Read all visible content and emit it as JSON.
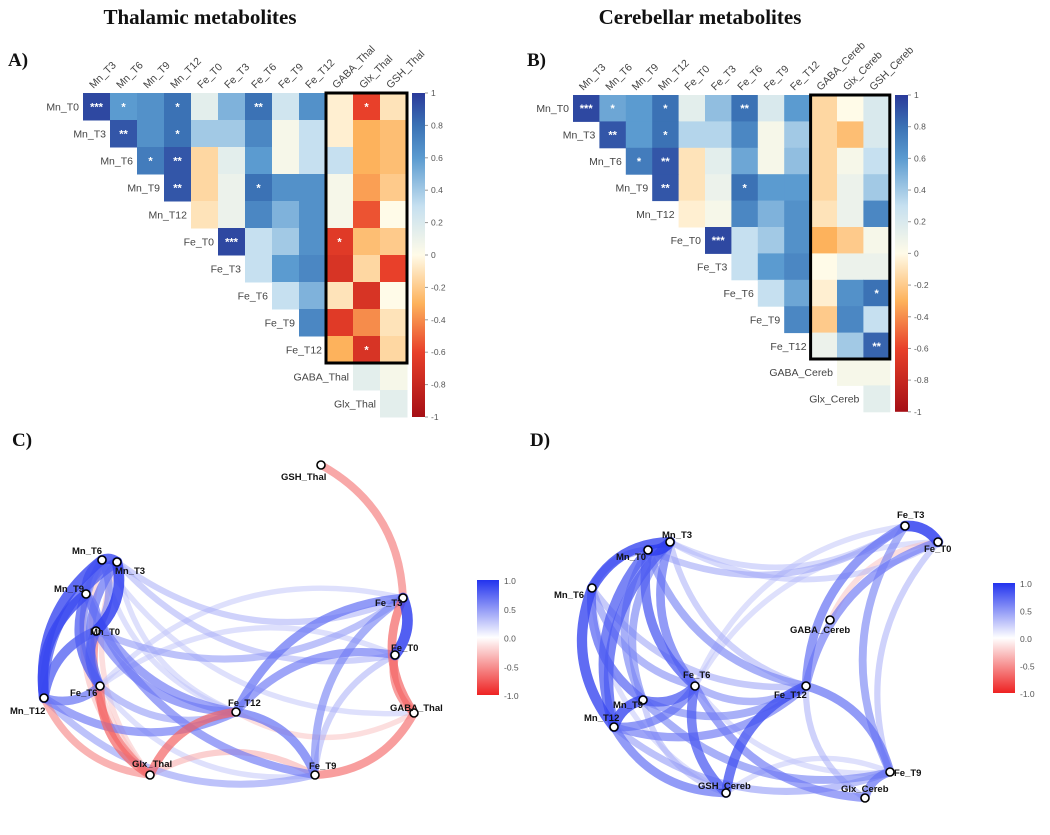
{
  "figure": {
    "titles": [
      "Thalamic metabolites",
      "Cerebellar metabolites"
    ],
    "panel_labels": [
      "A)",
      "B)",
      "C)",
      "D)"
    ]
  },
  "chart_data": [
    {
      "type": "heatmap",
      "panel": "A)",
      "title": "Thalamic metabolites",
      "row_labels": [
        "Mn_T0",
        "Mn_T3",
        "Mn_T6",
        "Mn_T9",
        "Mn_T12",
        "Fe_T0",
        "Fe_T3",
        "Fe_T6",
        "Fe_T9",
        "Fe_T12",
        "GABA_Thal",
        "Glx_Thal"
      ],
      "col_labels": [
        "Mn_T3",
        "Mn_T6",
        "Mn_T9",
        "Mn_T12",
        "Fe_T0",
        "Fe_T3",
        "Fe_T6",
        "Fe_T9",
        "Fe_T12",
        "GABA_Thal",
        "Glx_Thal",
        "GSH_Thal"
      ],
      "layout": "upper-triangle",
      "values": [
        [
          0.95,
          0.6,
          0.65,
          0.8,
          0.15,
          0.5,
          0.8,
          0.25,
          0.65,
          -0.05,
          -0.6,
          -0.1
        ],
        [
          0.9,
          0.65,
          0.8,
          0.4,
          0.4,
          0.7,
          0.05,
          0.3,
          -0.05,
          -0.3,
          -0.25
        ],
        [
          0.75,
          0.9,
          -0.15,
          0.15,
          0.6,
          0.05,
          0.3,
          0.3,
          -0.3,
          -0.25
        ],
        [
          0.9,
          -0.15,
          0.1,
          0.8,
          0.65,
          0.65,
          0.05,
          -0.35,
          -0.2
        ],
        [
          -0.1,
          0.1,
          0.7,
          0.5,
          0.65,
          0.05,
          -0.55,
          0.0
        ],
        [
          0.95,
          0.3,
          0.4,
          0.65,
          -0.65,
          -0.25,
          -0.2
        ],
        [
          0.3,
          0.6,
          0.7,
          -0.7,
          -0.15,
          -0.6
        ],
        [
          0.3,
          0.5,
          -0.1,
          -0.7,
          0.0
        ],
        [
          0.7,
          -0.65,
          -0.4,
          -0.1
        ],
        [
          -0.3,
          -0.7,
          -0.15
        ],
        [
          0.15,
          0.05
        ],
        [
          0.15
        ]
      ],
      "significance": [
        [
          "***",
          "*",
          "",
          "*",
          "",
          "",
          "**",
          "",
          "",
          "",
          "*",
          ""
        ],
        [
          "**",
          "",
          "*",
          "",
          "",
          "",
          "",
          "",
          "",
          "",
          ""
        ],
        [
          "*",
          "**",
          "",
          "",
          "",
          "",
          "",
          "",
          "",
          ""
        ],
        [
          "**",
          "",
          "",
          "*",
          "",
          "",
          "",
          "",
          ""
        ],
        [
          "",
          "",
          "",
          "",
          "",
          "",
          "",
          ""
        ],
        [
          "***",
          "",
          "",
          "",
          "*",
          "",
          ""
        ],
        [
          "",
          "",
          "",
          "",
          "",
          ""
        ],
        [
          "",
          "",
          "",
          "",
          ""
        ],
        [
          "",
          "",
          "",
          ""
        ],
        [
          "",
          "*",
          ""
        ],
        [
          "",
          ""
        ],
        [
          ""
        ]
      ],
      "highlight_box": {
        "columns": [
          "GABA_Thal",
          "Glx_Thal",
          "GSH_Thal"
        ],
        "rows": [
          "Mn_T0",
          "Fe_T12"
        ]
      },
      "colorbar": {
        "range": [
          -1,
          1
        ],
        "ticks": [
          "1",
          "0.8",
          "0.6",
          "0.4",
          "0.2",
          "0",
          "-0.2",
          "-0.4",
          "-0.6",
          "-0.8",
          "-1"
        ]
      }
    },
    {
      "type": "heatmap",
      "panel": "B)",
      "title": "Cerebellar metabolites",
      "row_labels": [
        "Mn_T0",
        "Mn_T3",
        "Mn_T6",
        "Mn_T9",
        "Mn_T12",
        "Fe_T0",
        "Fe_T3",
        "Fe_T6",
        "Fe_T9",
        "Fe_T12",
        "GABA_Cereb",
        "Glx_Cereb"
      ],
      "col_labels": [
        "Mn_T3",
        "Mn_T6",
        "Mn_T9",
        "Mn_T12",
        "Fe_T0",
        "Fe_T3",
        "Fe_T6",
        "Fe_T9",
        "Fe_T12",
        "GABA_Cereb",
        "Glx_Cereb",
        "GSH_Cereb"
      ],
      "layout": "upper-triangle",
      "values": [
        [
          0.95,
          0.55,
          0.6,
          0.8,
          0.15,
          0.45,
          0.8,
          0.2,
          0.6,
          -0.15,
          0.0,
          0.2
        ],
        [
          0.9,
          0.6,
          0.8,
          0.35,
          0.35,
          0.7,
          0.05,
          0.4,
          -0.15,
          -0.25,
          0.2
        ],
        [
          0.75,
          0.9,
          -0.1,
          0.15,
          0.55,
          0.05,
          0.45,
          -0.15,
          0.05,
          0.3
        ],
        [
          0.9,
          -0.1,
          0.1,
          0.8,
          0.6,
          0.6,
          -0.15,
          0.1,
          0.4
        ],
        [
          -0.05,
          0.05,
          0.7,
          0.5,
          0.65,
          -0.1,
          0.1,
          0.7
        ],
        [
          0.95,
          0.3,
          0.4,
          0.65,
          -0.3,
          -0.2,
          0.05
        ],
        [
          0.3,
          0.6,
          0.7,
          0.0,
          0.1,
          0.1
        ],
        [
          0.3,
          0.55,
          -0.05,
          0.65,
          0.8
        ],
        [
          0.7,
          -0.2,
          0.7,
          0.3
        ],
        [
          0.1,
          0.4,
          0.85
        ],
        [
          0.05,
          0.05
        ],
        [
          0.15
        ]
      ],
      "significance": [
        [
          "***",
          "*",
          "",
          "*",
          "",
          "",
          "**",
          "",
          "",
          "",
          "",
          ""
        ],
        [
          "**",
          "",
          "*",
          "",
          "",
          "",
          "",
          "",
          "",
          "",
          ""
        ],
        [
          "*",
          "**",
          "",
          "",
          "",
          "",
          "",
          "",
          "",
          ""
        ],
        [
          "**",
          "",
          "",
          "*",
          "",
          "",
          "",
          "",
          ""
        ],
        [
          "",
          "",
          "",
          "",
          "",
          "",
          "",
          ""
        ],
        [
          "***",
          "",
          "",
          "",
          "",
          "",
          ""
        ],
        [
          "",
          "",
          "",
          "",
          "",
          ""
        ],
        [
          "",
          "",
          "",
          "",
          "*"
        ],
        [
          "",
          "",
          "",
          ""
        ],
        [
          "",
          "",
          "**"
        ],
        [
          "",
          ""
        ],
        [
          ""
        ]
      ],
      "highlight_box": {
        "columns": [
          "GABA_Cereb",
          "Glx_Cereb",
          "GSH_Cereb"
        ],
        "rows": [
          "Mn_T0",
          "Fe_T12"
        ]
      },
      "colorbar": {
        "range": [
          -1,
          1
        ],
        "ticks": [
          "1",
          "0.8",
          "0.6",
          "0.4",
          "0.2",
          "0",
          "-0.2",
          "-0.4",
          "-0.6",
          "-0.8",
          "-1"
        ]
      }
    },
    {
      "type": "network",
      "panel": "C)",
      "nodes": [
        "Mn_T0",
        "Mn_T3",
        "Mn_T6",
        "Mn_T9",
        "Mn_T12",
        "Fe_T0",
        "Fe_T3",
        "Fe_T6",
        "Fe_T9",
        "Fe_T12",
        "GABA_Thal",
        "Glx_Thal",
        "GSH_Thal"
      ],
      "edges_from": "A)",
      "colorbar": {
        "range": [
          -1,
          1
        ],
        "ticks": [
          "1.0",
          "0.5",
          "0.0",
          "-0.5",
          "-1.0"
        ],
        "colors": {
          "positive": "#2233ee",
          "zero": "#ffffff",
          "negative": "#ee2222"
        }
      }
    },
    {
      "type": "network",
      "panel": "D)",
      "nodes": [
        "Mn_T0",
        "Mn_T3",
        "Mn_T6",
        "Mn_T9",
        "Mn_T12",
        "Fe_T0",
        "Fe_T3",
        "Fe_T6",
        "Fe_T9",
        "Fe_T12",
        "GABA_Cereb",
        "Glx_Cereb",
        "GSH_Cereb"
      ],
      "edges_from": "B)",
      "colorbar": {
        "range": [
          -1,
          1
        ],
        "ticks": [
          "1.0",
          "0.5",
          "0.0",
          "-0.5",
          "-1.0"
        ],
        "colors": {
          "positive": "#2233ee",
          "zero": "#ffffff",
          "negative": "#ee2222"
        }
      }
    }
  ]
}
